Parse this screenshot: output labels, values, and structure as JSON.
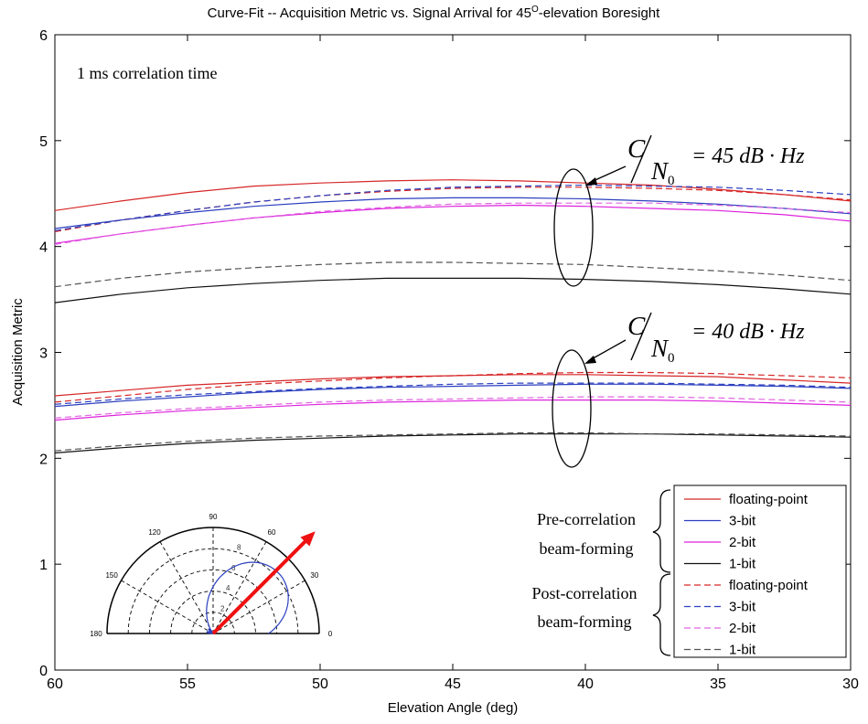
{
  "chart_data": {
    "type": "line",
    "title_main": "Curve-Fit -- Acquisition Metric vs. Signal Arrival for 45",
    "title_sup": "O",
    "title_end": "-elevation Boresight",
    "xlabel": "Elevation Angle (deg)",
    "ylabel": "Acquisition Metric",
    "xlim": [
      60,
      30
    ],
    "ylim": [
      0,
      6
    ],
    "x_reversed": true,
    "x_ticks": [
      60,
      55,
      50,
      45,
      40,
      35,
      30
    ],
    "y_ticks": [
      0,
      1,
      2,
      3,
      4,
      5,
      6
    ],
    "grid": false,
    "annotation_correlation": "1 ms correlation time",
    "cn0_groups": [
      {
        "c": "C",
        "n": "N",
        "sub": "0",
        "rhs": "= 45 dB · Hz"
      },
      {
        "c": "C",
        "n": "N",
        "sub": "0",
        "rhs": "= 40 dB · Hz"
      }
    ],
    "legend_groups": [
      {
        "line1": "Pre-correlation",
        "line2": "beam-forming"
      },
      {
        "line1": "Post-correlation",
        "line2": "beam-forming"
      }
    ],
    "legend_location": "lower-right",
    "x": [
      60,
      57.5,
      55,
      52.5,
      50,
      47.5,
      45,
      42.5,
      40,
      37.5,
      35,
      32.5,
      30
    ],
    "series": [
      {
        "name": "floating-point",
        "group": "pre",
        "color": "#d62728",
        "dash": "solid",
        "cn0": 45,
        "values": [
          4.34,
          4.43,
          4.51,
          4.57,
          4.6,
          4.62,
          4.63,
          4.62,
          4.6,
          4.58,
          4.54,
          4.49,
          4.43
        ]
      },
      {
        "name": "3-bit",
        "group": "pre",
        "color": "#2b3fbf",
        "dash": "solid",
        "cn0": 45,
        "values": [
          4.17,
          4.25,
          4.32,
          4.38,
          4.42,
          4.45,
          4.46,
          4.46,
          4.45,
          4.43,
          4.4,
          4.36,
          4.31
        ]
      },
      {
        "name": "2-bit",
        "group": "pre",
        "color": "#dd22dd",
        "dash": "solid",
        "cn0": 45,
        "values": [
          4.03,
          4.12,
          4.2,
          4.27,
          4.32,
          4.36,
          4.38,
          4.39,
          4.38,
          4.36,
          4.34,
          4.3,
          4.24
        ]
      },
      {
        "name": "1-bit",
        "group": "pre",
        "color": "#111111",
        "dash": "solid",
        "cn0": 45,
        "values": [
          3.47,
          3.55,
          3.61,
          3.65,
          3.68,
          3.7,
          3.7,
          3.7,
          3.69,
          3.67,
          3.64,
          3.6,
          3.55
        ]
      },
      {
        "name": "floating-point",
        "group": "post",
        "color": "#d62728",
        "dash": "dashed",
        "cn0": 45,
        "values": [
          4.14,
          4.25,
          4.34,
          4.42,
          4.48,
          4.52,
          4.55,
          4.56,
          4.56,
          4.55,
          4.53,
          4.49,
          4.44
        ]
      },
      {
        "name": "3-bit",
        "group": "post",
        "color": "#2b3fbf",
        "dash": "dashed",
        "cn0": 45,
        "values": [
          4.15,
          4.25,
          4.34,
          4.42,
          4.48,
          4.53,
          4.56,
          4.57,
          4.58,
          4.57,
          4.56,
          4.53,
          4.49
        ]
      },
      {
        "name": "2-bit",
        "group": "post",
        "color": "#e066e0",
        "dash": "dashed",
        "cn0": 45,
        "values": [
          4.02,
          4.12,
          4.2,
          4.27,
          4.33,
          4.37,
          4.4,
          4.41,
          4.41,
          4.41,
          4.39,
          4.36,
          4.32
        ]
      },
      {
        "name": "1-bit",
        "group": "post",
        "color": "#555555",
        "dash": "dashed",
        "cn0": 45,
        "values": [
          3.62,
          3.7,
          3.76,
          3.8,
          3.83,
          3.85,
          3.85,
          3.84,
          3.83,
          3.8,
          3.77,
          3.73,
          3.68
        ]
      },
      {
        "name": "floating-point",
        "group": "pre",
        "color": "#d62728",
        "dash": "solid",
        "cn0": 40,
        "values": [
          2.59,
          2.64,
          2.69,
          2.72,
          2.75,
          2.77,
          2.78,
          2.79,
          2.79,
          2.78,
          2.77,
          2.74,
          2.71
        ]
      },
      {
        "name": "3-bit",
        "group": "pre",
        "color": "#2b3fbf",
        "dash": "solid",
        "cn0": 40,
        "values": [
          2.49,
          2.54,
          2.58,
          2.62,
          2.65,
          2.67,
          2.68,
          2.69,
          2.7,
          2.7,
          2.69,
          2.68,
          2.66
        ]
      },
      {
        "name": "2-bit",
        "group": "pre",
        "color": "#dd22dd",
        "dash": "solid",
        "cn0": 40,
        "values": [
          2.36,
          2.41,
          2.45,
          2.48,
          2.51,
          2.53,
          2.54,
          2.55,
          2.55,
          2.55,
          2.54,
          2.52,
          2.5
        ]
      },
      {
        "name": "1-bit",
        "group": "pre",
        "color": "#111111",
        "dash": "solid",
        "cn0": 40,
        "values": [
          2.05,
          2.1,
          2.14,
          2.17,
          2.19,
          2.21,
          2.22,
          2.23,
          2.23,
          2.23,
          2.22,
          2.21,
          2.2
        ]
      },
      {
        "name": "floating-point",
        "group": "post",
        "color": "#d62728",
        "dash": "dashed",
        "cn0": 40,
        "values": [
          2.53,
          2.59,
          2.65,
          2.7,
          2.73,
          2.76,
          2.78,
          2.8,
          2.81,
          2.81,
          2.8,
          2.78,
          2.76
        ]
      },
      {
        "name": "3-bit",
        "group": "post",
        "color": "#2b3fbf",
        "dash": "dashed",
        "cn0": 40,
        "values": [
          2.51,
          2.56,
          2.6,
          2.63,
          2.66,
          2.68,
          2.7,
          2.71,
          2.71,
          2.71,
          2.7,
          2.69,
          2.67
        ]
      },
      {
        "name": "2-bit",
        "group": "post",
        "color": "#e066e0",
        "dash": "dashed",
        "cn0": 40,
        "values": [
          2.38,
          2.43,
          2.47,
          2.5,
          2.53,
          2.55,
          2.56,
          2.57,
          2.58,
          2.58,
          2.57,
          2.55,
          2.53
        ]
      },
      {
        "name": "1-bit",
        "group": "post",
        "color": "#555555",
        "dash": "dashed",
        "cn0": 40,
        "values": [
          2.07,
          2.12,
          2.16,
          2.19,
          2.21,
          2.22,
          2.23,
          2.24,
          2.24,
          2.23,
          2.23,
          2.22,
          2.21
        ]
      }
    ],
    "legend_entries": [
      {
        "name": "floating-point",
        "color": "#d62728",
        "dash": "solid"
      },
      {
        "name": "3-bit",
        "color": "#2b3fbf",
        "dash": "solid"
      },
      {
        "name": "2-bit",
        "color": "#dd22dd",
        "dash": "solid"
      },
      {
        "name": "1-bit",
        "color": "#111111",
        "dash": "solid"
      },
      {
        "name": "floating-point",
        "color": "#d62728",
        "dash": "dashed"
      },
      {
        "name": "3-bit",
        "color": "#2b3fbf",
        "dash": "dashed"
      },
      {
        "name": "2-bit",
        "color": "#e066e0",
        "dash": "dashed"
      },
      {
        "name": "1-bit",
        "color": "#555555",
        "dash": "dashed"
      }
    ],
    "inset_polar": {
      "angle_labels": [
        "180",
        "150",
        "120",
        "90",
        "60",
        "30",
        "0"
      ],
      "radius_labels": [
        "2",
        "4",
        "6",
        "8"
      ],
      "pattern_color": "#2b3fbf",
      "arrow_color": "#ee1111",
      "arrow_direction_deg": 45
    }
  }
}
